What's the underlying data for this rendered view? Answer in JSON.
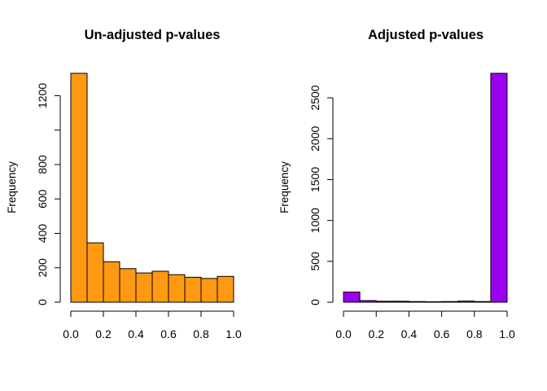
{
  "chart_data": [
    {
      "type": "bar",
      "title": "Un-adjusted p-values",
      "xlabel": "",
      "ylabel": "Frequency",
      "bar_color": "#FF9912",
      "bins": [
        {
          "from": 0.0,
          "to": 0.1,
          "count": 1330
        },
        {
          "from": 0.1,
          "to": 0.2,
          "count": 345
        },
        {
          "from": 0.2,
          "to": 0.3,
          "count": 235
        },
        {
          "from": 0.3,
          "to": 0.4,
          "count": 195
        },
        {
          "from": 0.4,
          "to": 0.5,
          "count": 170
        },
        {
          "from": 0.5,
          "to": 0.6,
          "count": 180
        },
        {
          "from": 0.6,
          "to": 0.7,
          "count": 160
        },
        {
          "from": 0.7,
          "to": 0.8,
          "count": 145
        },
        {
          "from": 0.8,
          "to": 0.9,
          "count": 138
        },
        {
          "from": 0.9,
          "to": 1.0,
          "count": 150
        }
      ],
      "xlim": [
        0,
        1
      ],
      "ylim": [
        0,
        1330
      ],
      "x_ticks": [
        0.0,
        0.2,
        0.4,
        0.6,
        0.8,
        1.0
      ],
      "x_tick_labels": [
        "0.0",
        "0.2",
        "0.4",
        "0.6",
        "0.8",
        "1.0"
      ],
      "y_ticks": [
        0,
        200,
        400,
        600,
        800,
        1000,
        1200
      ],
      "y_tick_labels": [
        "0",
        "200",
        "400",
        "600",
        "800",
        "",
        "1200"
      ],
      "grid": false
    },
    {
      "type": "bar",
      "title": "Adjusted p-values",
      "xlabel": "",
      "ylabel": "Frequency",
      "bar_color": "#9B00EE",
      "bins": [
        {
          "from": 0.0,
          "to": 0.1,
          "count": 125
        },
        {
          "from": 0.1,
          "to": 0.2,
          "count": 20
        },
        {
          "from": 0.2,
          "to": 0.3,
          "count": 12
        },
        {
          "from": 0.3,
          "to": 0.4,
          "count": 12
        },
        {
          "from": 0.4,
          "to": 0.5,
          "count": 8
        },
        {
          "from": 0.5,
          "to": 0.6,
          "count": 6
        },
        {
          "from": 0.6,
          "to": 0.7,
          "count": 8
        },
        {
          "from": 0.7,
          "to": 0.8,
          "count": 14
        },
        {
          "from": 0.8,
          "to": 0.9,
          "count": 8
        },
        {
          "from": 0.9,
          "to": 1.0,
          "count": 2800
        }
      ],
      "xlim": [
        0,
        1
      ],
      "ylim": [
        0,
        2800
      ],
      "x_ticks": [
        0.0,
        0.2,
        0.4,
        0.6,
        0.8,
        1.0
      ],
      "x_tick_labels": [
        "0.0",
        "0.2",
        "0.4",
        "0.6",
        "0.8",
        "1.0"
      ],
      "y_ticks": [
        0,
        500,
        1000,
        1500,
        2000,
        2500
      ],
      "y_tick_labels": [
        "0",
        "500",
        "1000",
        "1500",
        "2000",
        "2500"
      ],
      "grid": false
    }
  ]
}
